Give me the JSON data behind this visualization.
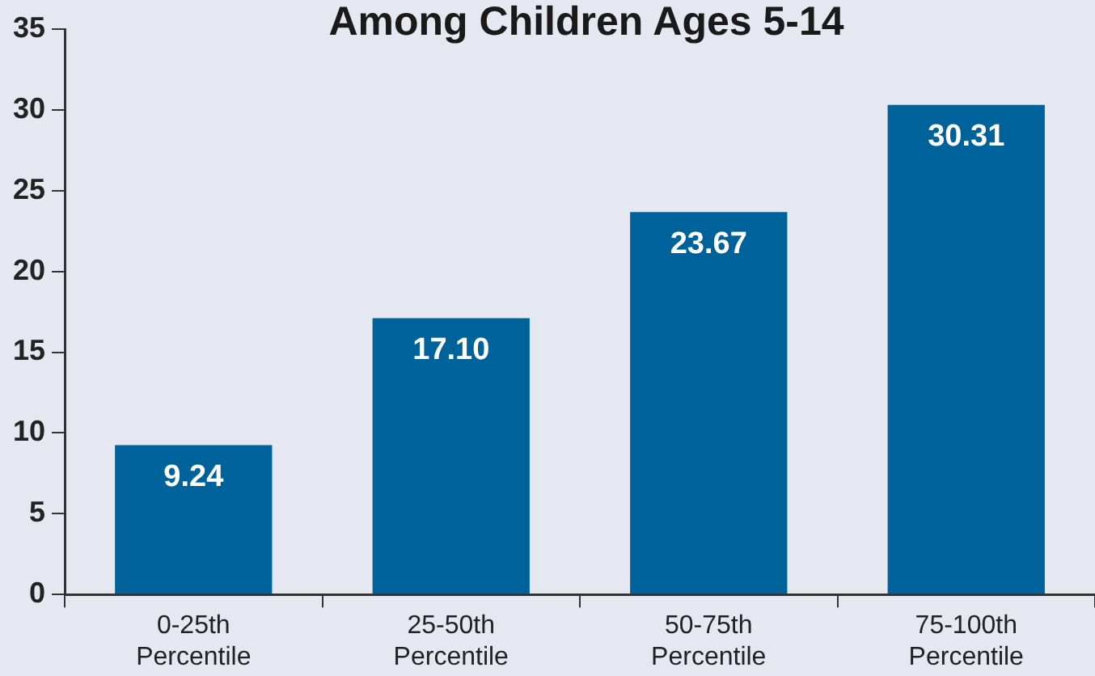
{
  "chart_data": {
    "type": "bar",
    "title": "Among Children Ages 5-14",
    "categories": [
      "0-25th Percentile",
      "25-50th Percentile",
      "50-75th Percentile",
      "75-100th Percentile"
    ],
    "values": [
      9.24,
      17.1,
      23.67,
      30.31
    ],
    "value_labels": [
      "9.24",
      "17.10",
      "23.67",
      "30.31"
    ],
    "color": "#00629b",
    "ylim": [
      0,
      35
    ],
    "yticks": [
      0,
      5,
      10,
      15,
      20,
      25,
      30,
      35
    ],
    "grid": false,
    "legend": false
  }
}
